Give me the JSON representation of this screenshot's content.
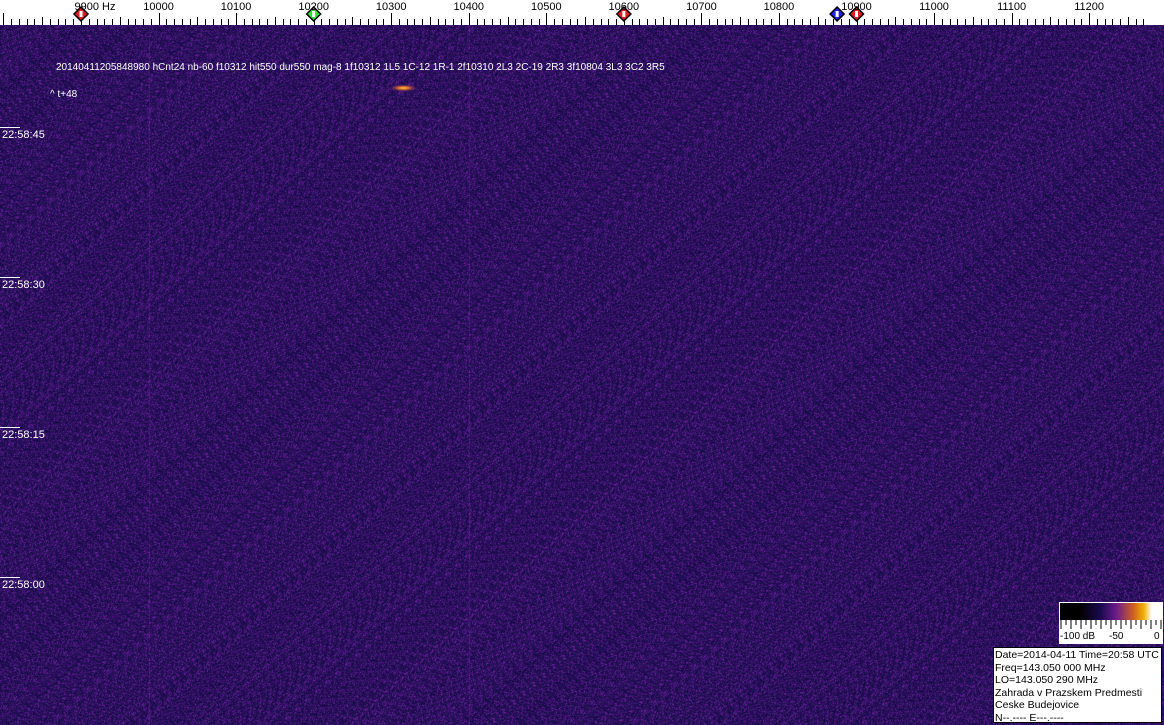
{
  "chart_data": {
    "type": "heatmap",
    "title": "",
    "xlabel": "Hz",
    "x_ticks": [
      "9900 Hz",
      "10000",
      "10100",
      "10200",
      "10300",
      "10400",
      "10500",
      "10600",
      "10700",
      "10800",
      "10900",
      "11000",
      "11100",
      "11200"
    ],
    "x_tick_values": [
      9900,
      10000,
      10100,
      10200,
      10300,
      10400,
      10500,
      10600,
      10700,
      10800,
      10900,
      11000,
      11100,
      11200
    ],
    "xlim": [
      9800,
      11264
    ],
    "y_ticks": [
      "22:58:45",
      "22:58:30",
      "22:58:15",
      "22:58:00"
    ],
    "colorbar": {
      "labels": [
        "-100 dB",
        "-50",
        "0"
      ],
      "range_db": [
        -100,
        0
      ]
    },
    "markers": [
      {
        "freq": 9900,
        "color": "#e02020"
      },
      {
        "freq": 10200,
        "color": "#30e030"
      },
      {
        "freq": 10600,
        "color": "#e02020"
      },
      {
        "freq": 10875,
        "color": "#2020e0"
      },
      {
        "freq": 10900,
        "color": "#e02020"
      }
    ],
    "signal": {
      "freq": 10312,
      "note": "meteor echo"
    }
  },
  "annotations": {
    "event": "20140411205848980 hCnt24 nb-60 f10312 hit550 dur550 mag-8 1f10312 1L5 1C-12 1R-1 2f10310 2L3 2C-19 2R3 3f10804 3L3 3C2 3R5",
    "offset": "^ t+48"
  },
  "info": {
    "lines": [
      "Date=2014-04-11 Time=20:58 UTC",
      "Freq=143.050 000 MHz",
      "LO=143.050 290 MHz",
      "Zahrada v Prazskem Predmesti",
      "Ceske Budejovice",
      "N--.---- E---.----"
    ]
  },
  "colors": {
    "background": "#1e0f5e",
    "noise": "#5a2a9a",
    "signal": "#ffb030"
  }
}
